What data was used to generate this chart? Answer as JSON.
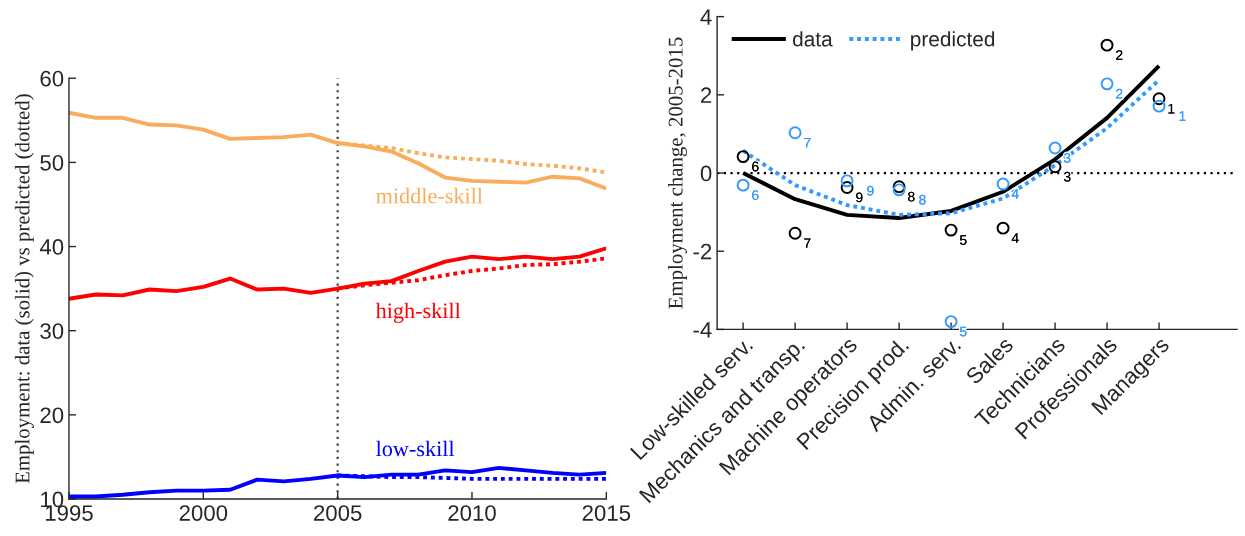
{
  "chart_data": [
    {
      "type": "line",
      "ylabel": "Employment: data (solid) vs predicted (dotted)",
      "x": [
        1995,
        1996,
        1997,
        1998,
        1999,
        2000,
        2001,
        2002,
        2003,
        2004,
        2005,
        2006,
        2007,
        2008,
        2009,
        2010,
        2011,
        2012,
        2013,
        2014,
        2015
      ],
      "xlim": [
        1995,
        2015
      ],
      "xticks": [
        1995,
        2000,
        2005,
        2010,
        2015
      ],
      "ylim": [
        10,
        60
      ],
      "yticks": [
        10,
        20,
        30,
        40,
        50,
        60
      ],
      "grid": false,
      "series": [
        {
          "name": "middle-skill",
          "color": "#f9ad5c",
          "line_style": "solid",
          "values": [
            55.9,
            55.3,
            55.3,
            54.5,
            54.4,
            53.9,
            52.8,
            52.9,
            53.0,
            53.3,
            52.3,
            51.9,
            51.3,
            49.9,
            48.2,
            47.8,
            47.7,
            47.6,
            48.3,
            48.1,
            46.9
          ]
        },
        {
          "color": "#f9ad5c",
          "line_style": "dotted",
          "x": [
            2005,
            2006,
            2007,
            2008,
            2009,
            2010,
            2011,
            2012,
            2013,
            2014,
            2015
          ],
          "values": [
            52.3,
            52.0,
            51.7,
            51.1,
            50.6,
            50.4,
            50.2,
            49.8,
            49.6,
            49.3,
            48.8
          ]
        },
        {
          "name": "high-skill",
          "color": "#ff0000",
          "line_style": "solid",
          "values": [
            33.8,
            34.3,
            34.2,
            34.9,
            34.7,
            35.2,
            36.2,
            34.9,
            35.0,
            34.5,
            35.0,
            35.6,
            35.9,
            37.1,
            38.2,
            38.8,
            38.5,
            38.8,
            38.5,
            38.8,
            39.8
          ]
        },
        {
          "color": "#ff0000",
          "line_style": "dotted",
          "x": [
            2005,
            2006,
            2007,
            2008,
            2009,
            2010,
            2011,
            2012,
            2013,
            2014,
            2015
          ],
          "values": [
            35.0,
            35.4,
            35.7,
            36.0,
            36.6,
            37.1,
            37.4,
            37.8,
            37.9,
            38.2,
            38.6
          ]
        },
        {
          "name": "low-skill",
          "color": "#0000ff",
          "line_style": "solid",
          "values": [
            10.3,
            10.3,
            10.5,
            10.8,
            11.0,
            11.0,
            11.1,
            12.3,
            12.1,
            12.4,
            12.8,
            12.6,
            12.9,
            12.9,
            13.4,
            13.2,
            13.7,
            13.4,
            13.1,
            12.9,
            13.1
          ]
        },
        {
          "color": "#0000ff",
          "line_style": "dotted",
          "x": [
            2005,
            2006,
            2007,
            2008,
            2009,
            2010,
            2011,
            2012,
            2013,
            2014,
            2015
          ],
          "values": [
            12.8,
            12.7,
            12.6,
            12.6,
            12.5,
            12.4,
            12.4,
            12.4,
            12.4,
            12.4,
            12.4
          ]
        }
      ],
      "ref_lines": [
        {
          "axis": "x",
          "value": 2005,
          "color": "#404040",
          "line_style": "dotted"
        }
      ]
    },
    {
      "type": "line",
      "ylabel": "Employment change, 2005-2015",
      "categories": [
        "Low-skilled serv.",
        "Mechanics and transp.",
        "Machine operators",
        "Precision prod.",
        "Admin. serv.",
        "Sales",
        "Technicians",
        "Professionals",
        "Managers"
      ],
      "ylim": [
        -4,
        4
      ],
      "yticks": [
        -4,
        -2,
        0,
        2,
        4
      ],
      "grid": false,
      "legend": "top left",
      "series": [
        {
          "name": "data",
          "color": "#000000",
          "line_style": "solid",
          "values": [
            0.0,
            -0.67,
            -1.07,
            -1.15,
            -0.97,
            -0.48,
            0.35,
            1.41,
            2.74
          ]
        },
        {
          "name": "predicted",
          "color": "#3399ff",
          "line_style": "dotted",
          "values": [
            0.57,
            -0.31,
            -0.82,
            -1.07,
            -1.03,
            -0.65,
            0.2,
            1.15,
            2.38
          ]
        },
        {
          "type": "scatter",
          "color": "#000000",
          "marker": "circle",
          "values": [
            0.42,
            -1.54,
            -0.37,
            -0.35,
            -1.46,
            -1.41,
            0.16,
            3.27,
            1.9
          ]
        },
        {
          "type": "scatter",
          "color": "#3399ff",
          "marker": "circle",
          "values": [
            -0.31,
            1.03,
            -0.2,
            -0.43,
            -3.8,
            -0.28,
            0.64,
            2.28,
            1.71
          ]
        }
      ],
      "ref_lines": [
        {
          "axis": "y",
          "value": 0,
          "color": "#000000",
          "line_style": "dotted"
        }
      ],
      "annotations": [
        {
          "text": "6",
          "x": "Low-skilled serv.",
          "y": 0.42
        },
        {
          "text": "7",
          "x": "Mechanics and transp.",
          "y": -1.54
        },
        {
          "text": "9",
          "x": "Machine operators",
          "y": -0.37
        },
        {
          "text": "8",
          "x": "Precision prod.",
          "y": -0.35
        },
        {
          "text": "5",
          "x": "Admin. serv.",
          "y": -1.46
        },
        {
          "text": "4",
          "x": "Sales",
          "y": -1.41
        },
        {
          "text": "3",
          "x": "Technicians",
          "y": 0.16
        },
        {
          "text": "2",
          "x": "Professionals",
          "y": 3.27
        },
        {
          "text": "1",
          "x": "Managers",
          "y": 1.9
        },
        {
          "text": "6",
          "x": "Low-skilled serv.",
          "y": -0.31
        },
        {
          "text": "7",
          "x": "Mechanics and transp.",
          "y": 1.03
        },
        {
          "text": "9",
          "x": "Machine operators",
          "y": -0.2
        },
        {
          "text": "8",
          "x": "Precision prod.",
          "y": -0.43
        },
        {
          "text": "5",
          "x": "Admin. serv.",
          "y": -3.8
        },
        {
          "text": "4",
          "x": "Sales",
          "y": -0.28
        },
        {
          "text": "3",
          "x": "Technicians",
          "y": 0.64
        },
        {
          "text": "2",
          "x": "Professionals",
          "y": 2.28
        },
        {
          "text": "1",
          "x": "Managers",
          "y": 1.71
        }
      ]
    }
  ]
}
